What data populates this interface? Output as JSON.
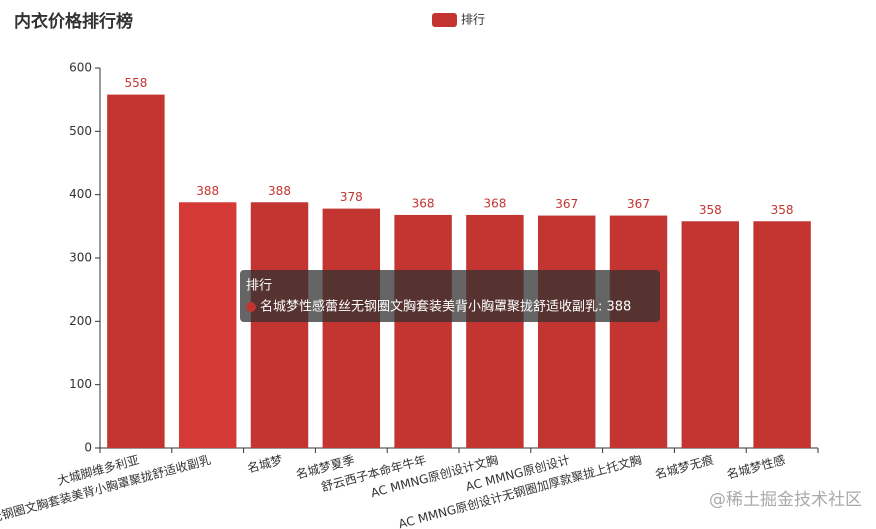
{
  "chart_data": {
    "type": "bar",
    "title": "内衣价格排行榜",
    "categories": [
      "大城脚维多利亚",
      "名城梦性感蕾丝无钢圈文胸套装美背小胸罩聚拢舒适收副乳",
      "名城梦",
      "名城梦夏季",
      "舒云西子本命年牛年",
      "AC MMNG原创设计文胸",
      "AC MMNG原创设计",
      "AC MMNG原创设计无钢圈加厚款聚拢上托文胸",
      "名城梦无痕",
      "名城梦性感"
    ],
    "series": [
      {
        "name": "排行",
        "color": "#c23531",
        "values": [
          558,
          388,
          388,
          378,
          368,
          368,
          367,
          367,
          358,
          358
        ]
      }
    ],
    "ylim": [
      0,
      600
    ],
    "yticks": [
      0,
      100,
      200,
      300,
      400,
      500,
      600
    ],
    "grid": false,
    "legend": "top",
    "tooltip": {
      "title": "排行",
      "text": "名城梦性感蕾丝无钢圈文胸套装美背小胸罩聚拢舒适收副乳: 388"
    }
  },
  "watermark": "@稀土掘金技术社区"
}
